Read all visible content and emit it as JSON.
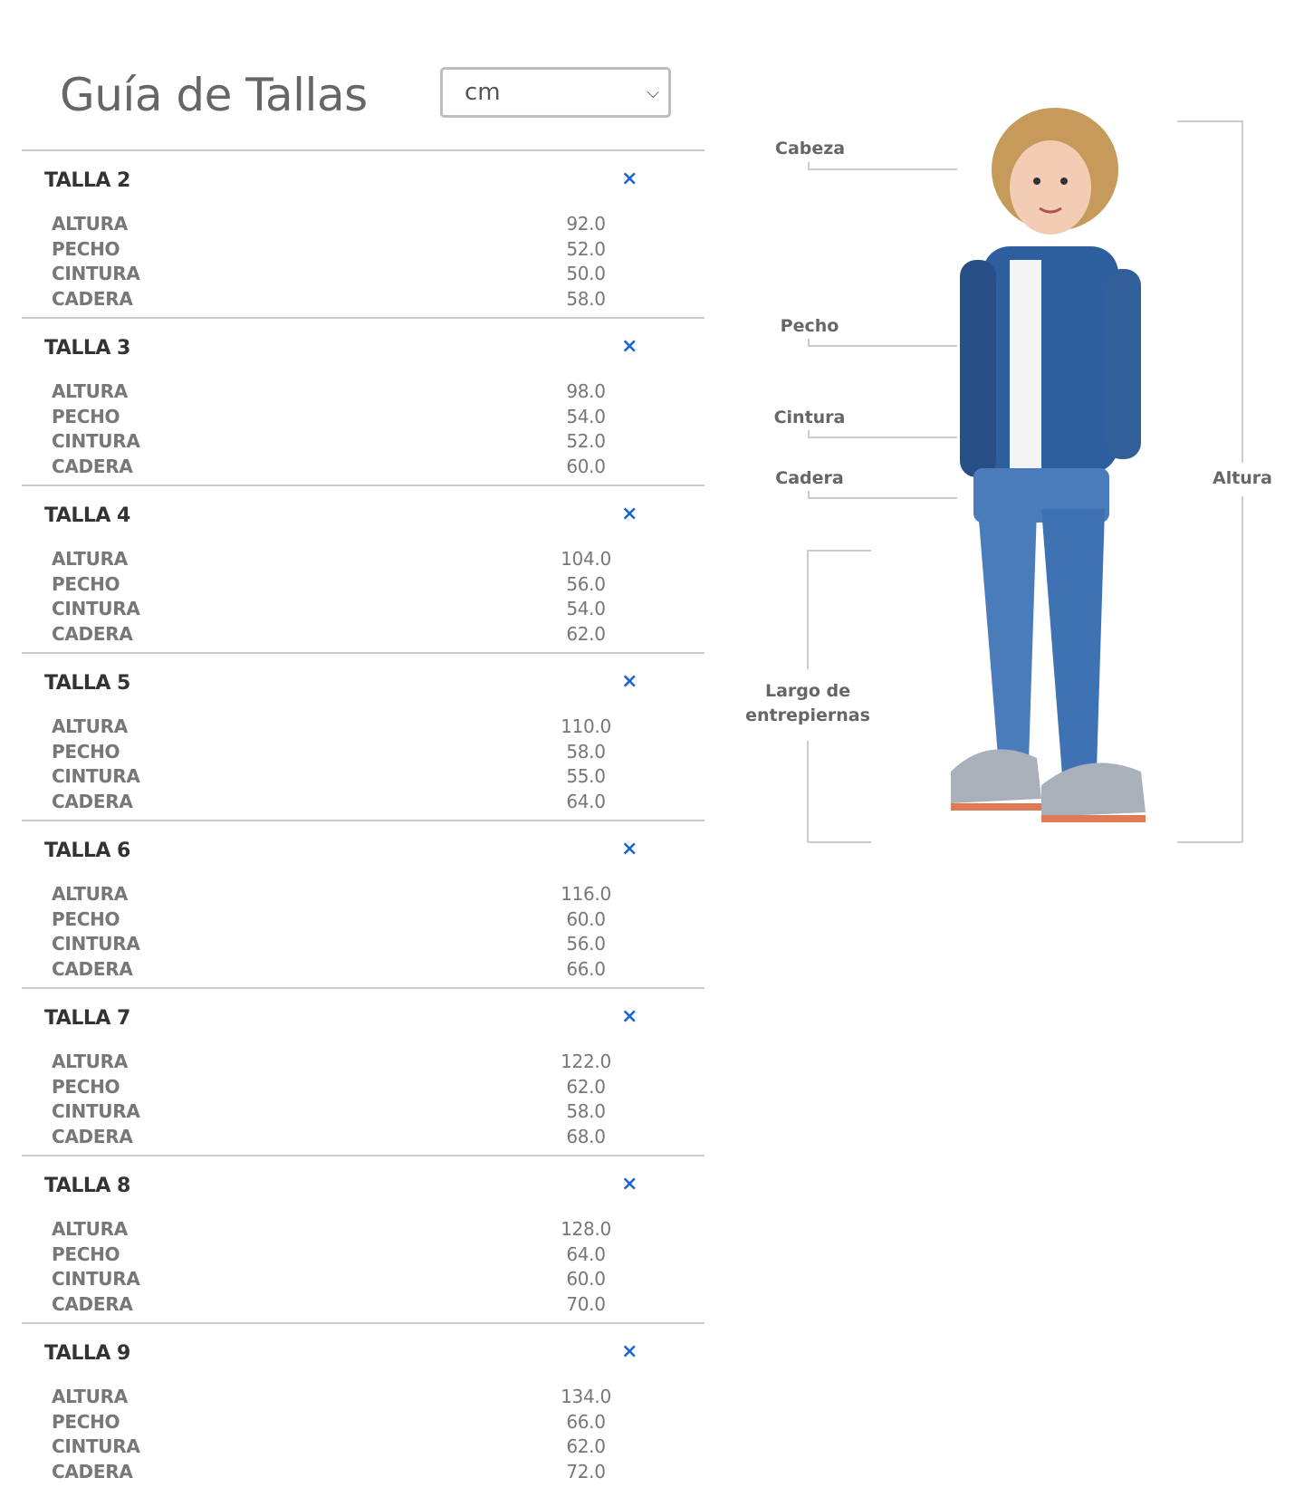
{
  "title": "Guía de Tallas",
  "unit_select": {
    "value": "cm"
  },
  "sizes": [
    {
      "name": "TALLA 2",
      "rows": [
        [
          "ALTURA",
          "92.0"
        ],
        [
          "PECHO",
          "52.0"
        ],
        [
          "CINTURA",
          "50.0"
        ],
        [
          "CADERA",
          "58.0"
        ]
      ]
    },
    {
      "name": "TALLA 3",
      "rows": [
        [
          "ALTURA",
          "98.0"
        ],
        [
          "PECHO",
          "54.0"
        ],
        [
          "CINTURA",
          "52.0"
        ],
        [
          "CADERA",
          "60.0"
        ]
      ]
    },
    {
      "name": "TALLA 4",
      "rows": [
        [
          "ALTURA",
          "104.0"
        ],
        [
          "PECHO",
          "56.0"
        ],
        [
          "CINTURA",
          "54.0"
        ],
        [
          "CADERA",
          "62.0"
        ]
      ]
    },
    {
      "name": "TALLA 5",
      "rows": [
        [
          "ALTURA",
          "110.0"
        ],
        [
          "PECHO",
          "58.0"
        ],
        [
          "CINTURA",
          "55.0"
        ],
        [
          "CADERA",
          "64.0"
        ]
      ]
    },
    {
      "name": "TALLA 6",
      "rows": [
        [
          "ALTURA",
          "116.0"
        ],
        [
          "PECHO",
          "60.0"
        ],
        [
          "CINTURA",
          "56.0"
        ],
        [
          "CADERA",
          "66.0"
        ]
      ]
    },
    {
      "name": "TALLA 7",
      "rows": [
        [
          "ALTURA",
          "122.0"
        ],
        [
          "PECHO",
          "62.0"
        ],
        [
          "CINTURA",
          "58.0"
        ],
        [
          "CADERA",
          "68.0"
        ]
      ]
    },
    {
      "name": "TALLA 8",
      "rows": [
        [
          "ALTURA",
          "128.0"
        ],
        [
          "PECHO",
          "64.0"
        ],
        [
          "CINTURA",
          "60.0"
        ],
        [
          "CADERA",
          "70.0"
        ]
      ]
    },
    {
      "name": "TALLA 9",
      "rows": [
        [
          "ALTURA",
          "134.0"
        ],
        [
          "PECHO",
          "66.0"
        ],
        [
          "CINTURA",
          "62.0"
        ],
        [
          "CADERA",
          "72.0"
        ]
      ]
    }
  ],
  "close_icon": "×",
  "diagram": {
    "cabeza": "Cabeza",
    "pecho": "Pecho",
    "cintura": "Cintura",
    "cadera": "Cadera",
    "altura": "Altura",
    "largo_1": "Largo de",
    "largo_2": "entrepiernas"
  },
  "colors": {
    "accent": "#1a66d2",
    "denim": "#2d5f9e"
  }
}
